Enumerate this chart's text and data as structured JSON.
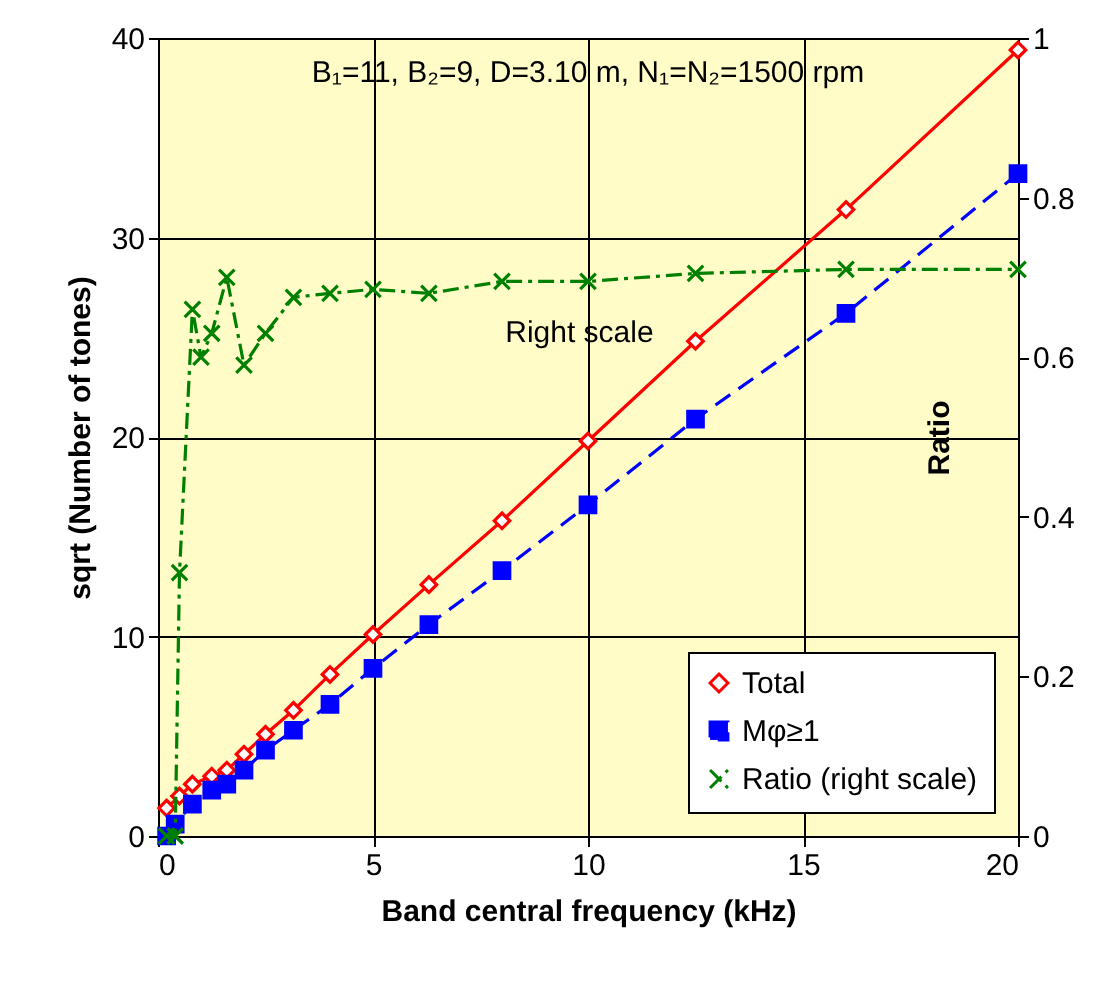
{
  "chart_data": {
    "type": "line",
    "xlabel": "Band central frequency (kHz)",
    "ylabel": "sqrt (Number of tones)",
    "y2label": "Ratio",
    "xlim": [
      0,
      20
    ],
    "xticks": [
      0,
      5,
      10,
      15,
      20
    ],
    "ylim": [
      0,
      40
    ],
    "yticks": [
      0,
      10,
      20,
      30,
      40
    ],
    "y2lim": [
      0,
      1
    ],
    "y2ticks": [
      0,
      0.2,
      0.4,
      0.6,
      0.8,
      1
    ],
    "grid": true,
    "legend": "bottom right",
    "annotations": [
      "B₁=11, B₂=9, D=3.10 m, N₁=N₂=1500 rpm",
      "Right scale"
    ],
    "series": [
      {
        "name": "Total",
        "color": "#ff0000",
        "marker": "diamond",
        "line_style": "solid",
        "x": [
          0.2,
          0.5,
          0.8,
          1.25,
          1.6,
          2,
          2.5,
          3.15,
          4,
          5,
          6.3,
          8,
          10,
          12.5,
          16,
          20
        ],
        "values": [
          1.4,
          2.0,
          2.6,
          3.0,
          3.3,
          4.1,
          5.1,
          6.3,
          8.1,
          10.1,
          12.6,
          15.8,
          19.8,
          24.8,
          31.4,
          39.4
        ]
      },
      {
        "name": "Mφ≥1",
        "color": "#0000ff",
        "marker": "square",
        "line_style": "dashed",
        "x": [
          0.2,
          0.4,
          0.8,
          1.25,
          1.6,
          2,
          2.5,
          3.15,
          4,
          5,
          6.3,
          8,
          10,
          12.5,
          16,
          20
        ],
        "values": [
          0,
          0.6,
          1.6,
          2.3,
          2.6,
          3.3,
          4.3,
          5.3,
          6.6,
          8.4,
          10.6,
          13.3,
          16.6,
          20.9,
          26.2,
          33.2
        ]
      },
      {
        "name": "Ratio (right scale)",
        "color": "#008000",
        "marker": "cross",
        "line_style": "dotted",
        "axis": "y2",
        "x": [
          0.2,
          0.4,
          0.5,
          0.8,
          1,
          1.25,
          1.6,
          2,
          2.5,
          3.15,
          4,
          5,
          6.3,
          8,
          10,
          12.5,
          16,
          20
        ],
        "values": [
          0,
          0,
          0.33,
          0.66,
          0.6,
          0.63,
          0.7,
          0.59,
          0.63,
          0.675,
          0.68,
          0.685,
          0.68,
          0.695,
          0.695,
          0.705,
          0.71,
          0.71
        ]
      }
    ]
  }
}
